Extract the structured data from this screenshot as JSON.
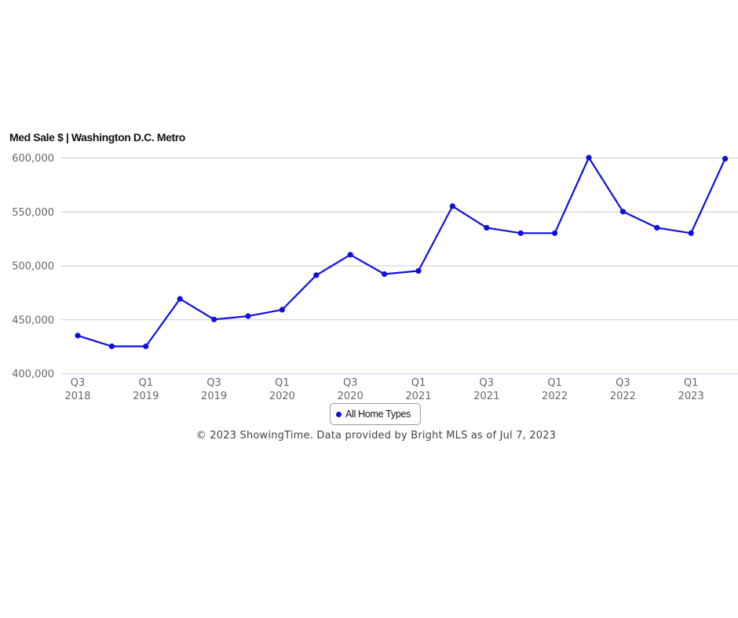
{
  "chart_data": {
    "type": "line",
    "title": "Med Sale $ | Washington D.C. Metro",
    "xlabel": "",
    "ylabel": "",
    "ylim": [
      400000,
      600000
    ],
    "yticks": [
      400000,
      450000,
      500000,
      550000,
      600000
    ],
    "ytick_labels": [
      "400,000",
      "450,000",
      "500,000",
      "550,000",
      "600,000"
    ],
    "categories": [
      "Q3 2018",
      "Q4 2018",
      "Q1 2019",
      "Q2 2019",
      "Q3 2019",
      "Q4 2019",
      "Q1 2020",
      "Q2 2020",
      "Q3 2020",
      "Q4 2020",
      "Q1 2021",
      "Q2 2021",
      "Q3 2021",
      "Q4 2021",
      "Q1 2022",
      "Q2 2022",
      "Q3 2022",
      "Q4 2022",
      "Q1 2023",
      "Q2 2023"
    ],
    "x_tick_labels": [
      {
        "q": "Q3",
        "year": "2018"
      },
      {
        "q": "Q1",
        "year": "2019"
      },
      {
        "q": "Q3",
        "year": "2019"
      },
      {
        "q": "Q1",
        "year": "2020"
      },
      {
        "q": "Q3",
        "year": "2020"
      },
      {
        "q": "Q1",
        "year": "2021"
      },
      {
        "q": "Q3",
        "year": "2021"
      },
      {
        "q": "Q1",
        "year": "2022"
      },
      {
        "q": "Q3",
        "year": "2022"
      },
      {
        "q": "Q1",
        "year": "2023"
      }
    ],
    "series": [
      {
        "name": "All Home Types",
        "color": "#1010dd",
        "values": [
          435000,
          425000,
          425000,
          469000,
          450000,
          453000,
          459000,
          491000,
          510000,
          492000,
          495000,
          555000,
          535000,
          530000,
          530000,
          600000,
          550000,
          535000,
          530000,
          599000
        ]
      }
    ],
    "grid": true,
    "legend_position": "bottom-center"
  },
  "credit": "© 2023 ShowingTime. Data provided by Bright MLS as of Jul 7, 2023",
  "colors": {
    "gridline": "#cccccc",
    "baseline": "#ccd6eb"
  }
}
